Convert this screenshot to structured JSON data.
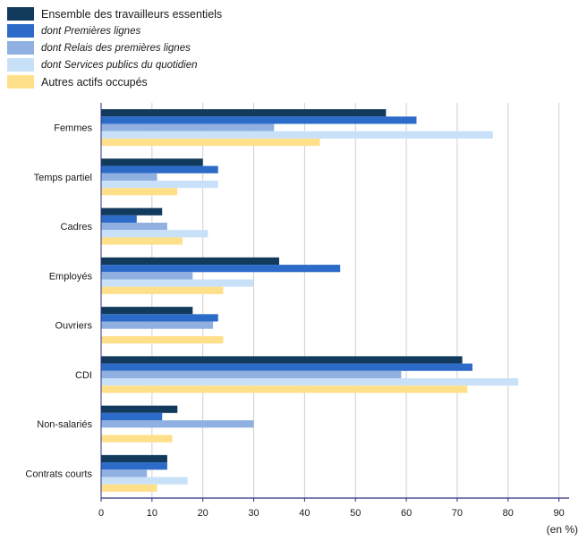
{
  "chart_data": {
    "type": "bar",
    "orientation": "horizontal",
    "categories": [
      "Femmes",
      "Temps partiel",
      "Cadres",
      "Employés",
      "Ouvriers",
      "CDI",
      "Non-salariés",
      "Contrats courts"
    ],
    "series": [
      {
        "name": "Ensemble des travailleurs essentiels",
        "color": "#123a5c",
        "italic": false,
        "values": [
          56,
          20,
          12,
          35,
          18,
          71,
          15,
          13
        ]
      },
      {
        "name": "dont Premières lignes",
        "color": "#2d6bc9",
        "italic": true,
        "values": [
          62,
          23,
          7,
          47,
          23,
          73,
          12,
          13
        ]
      },
      {
        "name": "dont Relais des premières lignes",
        "color": "#8fb0e0",
        "italic": true,
        "values": [
          34,
          11,
          13,
          18,
          22,
          59,
          30,
          9
        ]
      },
      {
        "name": "dont Services publics du quotidien",
        "color": "#c9e1f8",
        "italic": true,
        "values": [
          77,
          23,
          21,
          30,
          0,
          82,
          0,
          17
        ]
      },
      {
        "name": "Autres actifs occupés",
        "color": "#ffe08a",
        "italic": false,
        "values": [
          43,
          15,
          16,
          24,
          24,
          72,
          14,
          11
        ]
      }
    ],
    "xlim": [
      0,
      92
    ],
    "xticks": [
      0,
      10,
      20,
      30,
      40,
      50,
      60,
      70,
      80,
      90
    ],
    "unit_label": "(en %)",
    "grid": true,
    "legend_position": "top-left"
  }
}
